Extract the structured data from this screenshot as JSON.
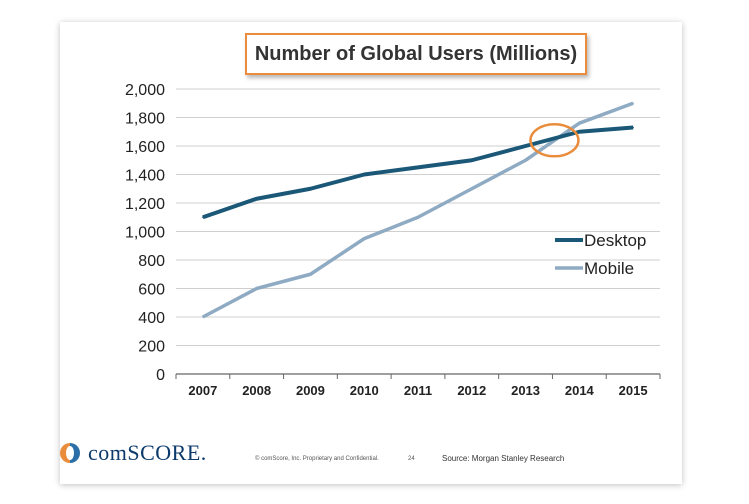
{
  "chart_data": {
    "type": "line",
    "title": "Number of Global Users (Millions)",
    "categories": [
      "2007",
      "2008",
      "2009",
      "2010",
      "2011",
      "2012",
      "2013",
      "2014",
      "2015"
    ],
    "series": [
      {
        "name": "Desktop",
        "values": [
          1100,
          1230,
          1300,
          1400,
          1450,
          1500,
          1600,
          1700,
          1730
        ],
        "color": "#1b5878"
      },
      {
        "name": "Mobile",
        "values": [
          400,
          600,
          700,
          950,
          1100,
          1300,
          1500,
          1760,
          1900
        ],
        "color": "#8eabc3"
      }
    ],
    "ylim": [
      0,
      2000
    ],
    "yticks": [
      "0",
      "200",
      "400",
      "600",
      "800",
      "1,000",
      "1,200",
      "1,400",
      "1,600",
      "1,800",
      "2,000"
    ],
    "legend_position": "right",
    "grid": true,
    "highlight": {
      "shape": "ellipse",
      "color": "#e98d3c",
      "note": "crossover between 2013 and 2014"
    }
  },
  "footer": {
    "logo_text": "comSCORE.",
    "copyright": "© comScore, Inc.  Proprietary and Confidential.",
    "page_number": "24",
    "source": "Source: Morgan Stanley Research"
  }
}
